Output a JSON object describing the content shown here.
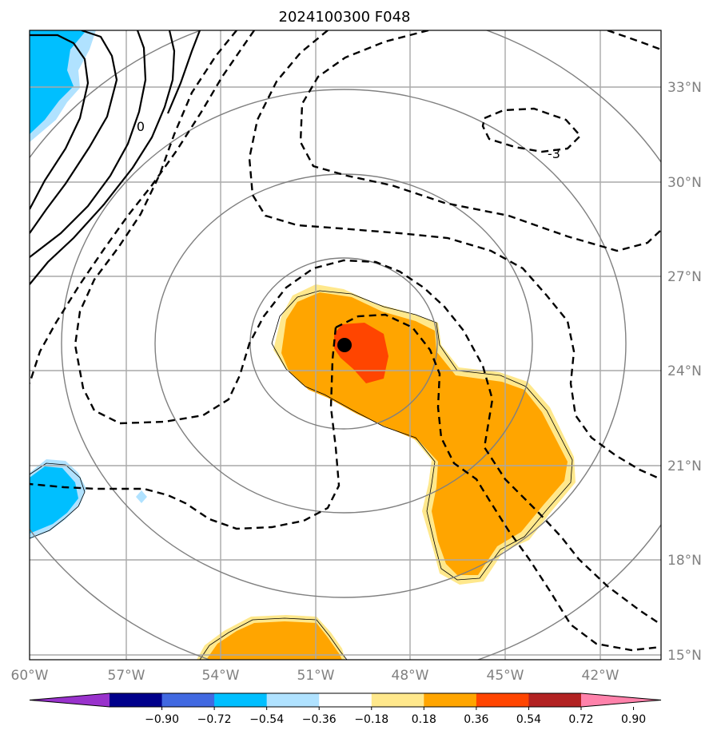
{
  "title": "2024100300 F048",
  "colors": {
    "cyan": "#00bfff",
    "light_blue": "#b0e2ff",
    "yellow": "#ffe88c",
    "orange": "#ffa500",
    "red_orange": "#ff4500",
    "gridline": "#a9a9a9",
    "range_ring": "#808080",
    "axis_label": "#808080"
  },
  "map": {
    "lon_range": [
      -60,
      -40
    ],
    "lat_range": [
      14.8,
      34.8
    ],
    "lon_ticks": [
      "60°W",
      "57°W",
      "54°W",
      "51°W",
      "48°W",
      "45°W",
      "42°W"
    ],
    "lat_ticks": [
      "33°N",
      "30°N",
      "27°N",
      "24°N",
      "21°N",
      "18°N",
      "15°N"
    ],
    "center_marker": {
      "lon": -50.0,
      "lat": 24.8,
      "icon": "storm-center-dot"
    },
    "contour_labels": [
      "0",
      "-3"
    ],
    "gridlines": true
  },
  "colorbar": {
    "colors": [
      "#9932cc",
      "#00008b",
      "#4169e1",
      "#00bfff",
      "#b0e2ff",
      "#ffffff",
      "#ffe88c",
      "#ffa500",
      "#ff4500",
      "#b22222",
      "#ff82ab"
    ],
    "labels": [
      "−0.90",
      "−0.72",
      "−0.54",
      "−0.36",
      "−0.18",
      "0.18",
      "0.36",
      "0.54",
      "0.72",
      "0.90"
    ],
    "extend": "both"
  }
}
